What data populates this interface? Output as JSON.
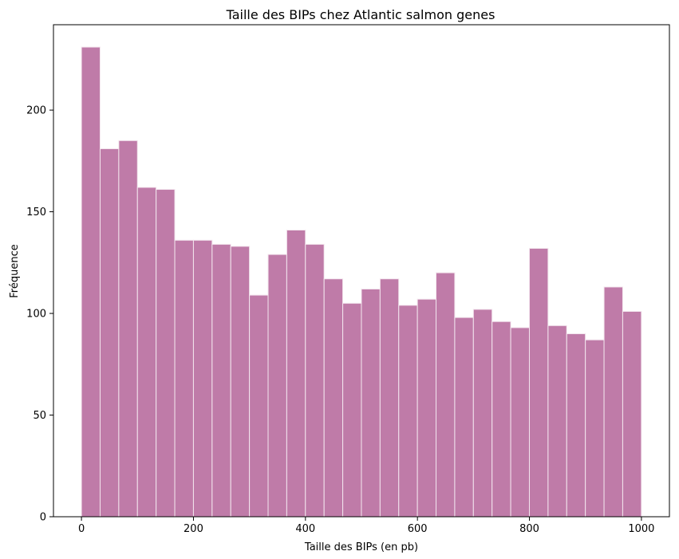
{
  "chart_data": {
    "type": "bar",
    "title": "Taille des BIPs chez Atlantic salmon genes",
    "xlabel": "Taille des BIPs (en pb)",
    "ylabel": "Fréquence",
    "bin_start": 0,
    "bin_width": 33.33,
    "values": [
      231,
      181,
      185,
      162,
      161,
      136,
      136,
      134,
      133,
      109,
      129,
      141,
      134,
      117,
      105,
      112,
      117,
      104,
      107,
      120,
      98,
      102,
      96,
      93,
      132,
      94,
      90,
      87,
      113,
      101
    ],
    "xlim": [
      -50,
      1050
    ],
    "ylim": [
      0,
      242
    ],
    "xticks": [
      0,
      200,
      400,
      600,
      800,
      1000
    ],
    "yticks": [
      0,
      50,
      100,
      150,
      200
    ],
    "bar_color": "#bf7ba8",
    "edge_color": "#f3e6ee",
    "grid": false
  }
}
